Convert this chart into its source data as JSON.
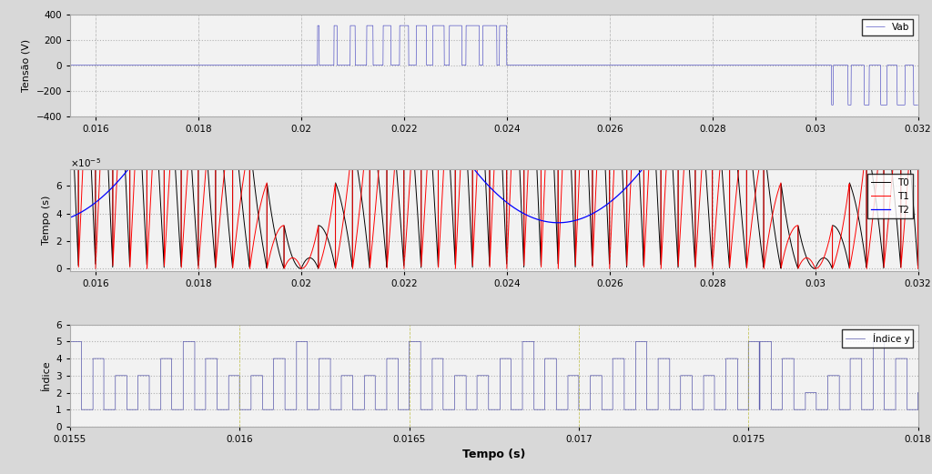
{
  "fig_width": 10.24,
  "fig_height": 5.21,
  "dpi": 100,
  "subplot1": {
    "xlim": [
      0.0155,
      0.032
    ],
    "ylim": [
      -400,
      400
    ],
    "ylabel": "Tensão (V)",
    "yticks": [
      -400,
      -200,
      0,
      200,
      400
    ],
    "legend": "Vab",
    "line_color": "#3333bb",
    "freq_pwm": 3000,
    "freq_fund": 50,
    "Vdc": 311.0,
    "transition": 0.024
  },
  "subplot2": {
    "xlim": [
      0.0155,
      0.032
    ],
    "ylim": [
      -2e-06,
      7.2e-05
    ],
    "ylabel": "Tempo (s)",
    "yticks": [
      0,
      2e-05,
      4e-05,
      6e-05
    ],
    "yticklabels": [
      "0",
      "2",
      "4",
      "6"
    ],
    "T0_color": "#0000ff",
    "T1_color": "#000000",
    "T2_color": "#ff0000",
    "legend_T0": "T0",
    "legend_T1": "T1",
    "legend_T2": "T2",
    "freq_pwm": 3000,
    "freq_fund": 50,
    "Ma": 0.9
  },
  "subplot3": {
    "xlim": [
      0.0155,
      0.018
    ],
    "ylim": [
      0,
      6
    ],
    "ylabel": "Índice",
    "xlabel": "Tempo (s)",
    "yticks": [
      0,
      1,
      2,
      3,
      4,
      5,
      6
    ],
    "legend": "Índice y",
    "line_color": "#5555aa",
    "freq_pwm": 3000,
    "freq_fund": 50
  },
  "xticks_top": [
    0.016,
    0.018,
    0.02,
    0.022,
    0.024,
    0.026,
    0.028,
    0.03,
    0.032
  ],
  "xtick_labels_top": [
    "0.016",
    "0.018",
    "0.02",
    "0.022",
    "0.024",
    "0.026",
    "0.028",
    "0.03",
    "0.032"
  ],
  "xticks_bottom": [
    0.0155,
    0.016,
    0.0165,
    0.017,
    0.0175,
    0.018
  ],
  "xtick_labels_bottom": [
    "0.0155",
    "0.016",
    "0.0165",
    "0.017",
    "0.0175",
    "0.018"
  ],
  "grid_color": "#888888",
  "vline_color": "#888888",
  "bg_color": "#f2f2f2",
  "fig_bg": "#d8d8d8"
}
